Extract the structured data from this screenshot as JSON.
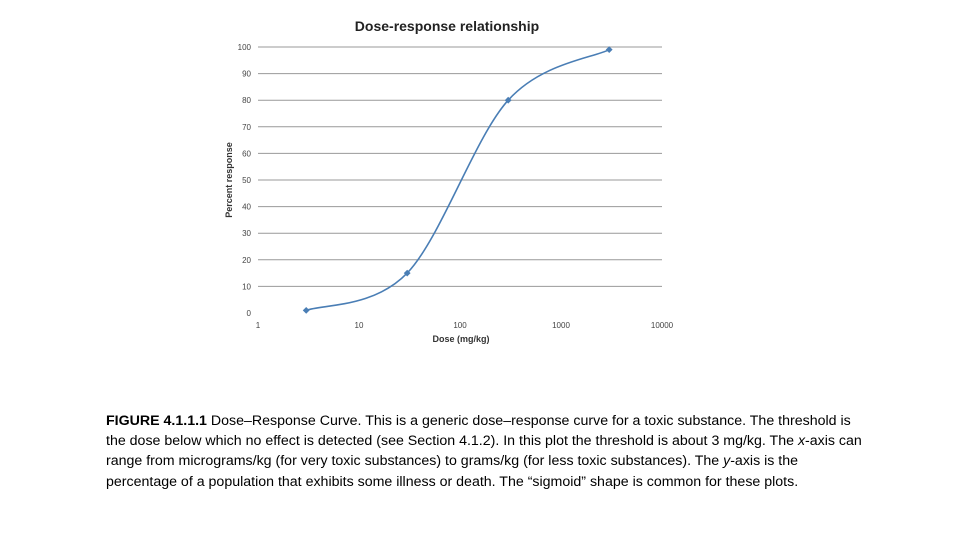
{
  "chart_data": {
    "type": "line",
    "title": "Dose-response relationship",
    "xlabel": "Dose (mg/kg)",
    "ylabel": "Percent response",
    "x_scale": "log",
    "xlim": [
      1,
      10000
    ],
    "ylim": [
      0,
      100
    ],
    "x_ticks": [
      "1",
      "10",
      "100",
      "1000",
      "10000"
    ],
    "y_ticks": [
      "0",
      "10",
      "20",
      "30",
      "40",
      "50",
      "60",
      "70",
      "80",
      "90",
      "100"
    ],
    "grid": true,
    "legend": "none",
    "series": [
      {
        "x": [
          3,
          30,
          300,
          3000
        ],
        "values": [
          1,
          15,
          80,
          99
        ],
        "color": "#4a7eb5"
      }
    ]
  },
  "caption": {
    "label": "FIGURE 4.1.1.1",
    "part1": " Dose–Response Curve. This is a generic dose–response curve for a toxic substance. The threshold is the dose below which no effect is detected (see Section 4.1.2).  In this plot the threshold is about 3 mg/kg. The ",
    "x_term": "x",
    "part2": "-axis can range from micrograms/kg (for very toxic substances) to grams/kg (for less toxic substances). The ",
    "y_term": "y",
    "part3": "-axis is the percentage of a population that exhibits some illness or death.  The “sigmoid” shape is common for these plots."
  }
}
